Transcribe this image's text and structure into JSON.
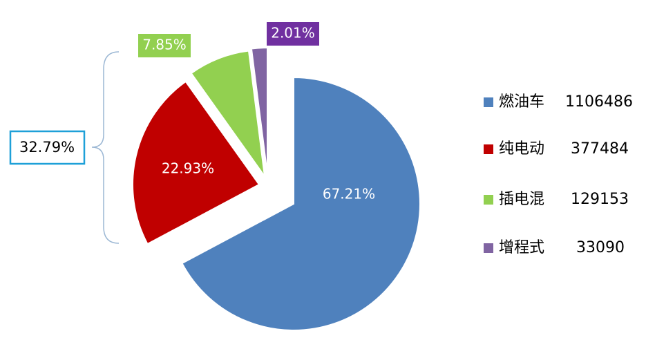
{
  "chart_data": {
    "type": "pie",
    "categories": [
      "燃油车",
      "纯电动",
      "插电混",
      "增程式"
    ],
    "values": [
      67.21,
      22.93,
      7.85,
      2.01
    ],
    "value_labels": [
      "67.21%",
      "22.93%",
      "7.85%",
      "2.01%"
    ],
    "counts": [
      1106486,
      377484,
      129153,
      33090
    ],
    "colors": [
      "#4f81bd",
      "#c00000",
      "#92d050",
      "#8064a2"
    ],
    "annotation": "32.79%",
    "legend": "right"
  }
}
